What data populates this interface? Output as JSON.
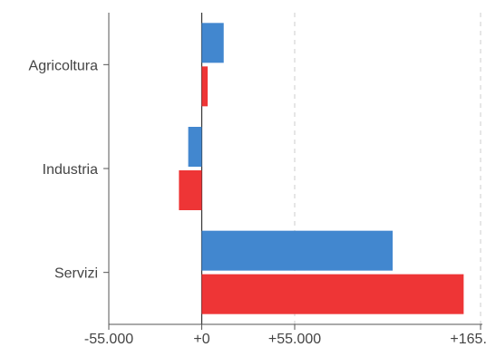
{
  "chart_data": {
    "type": "bar",
    "orientation": "horizontal",
    "categories": [
      "Agricoltura",
      "Industria",
      "Servizi"
    ],
    "series": [
      {
        "values": [
          13000,
          -8000,
          113000
        ],
        "color": "#4287cf"
      },
      {
        "values": [
          3500,
          -13500,
          155000
        ],
        "color": "#ee3536"
      }
    ],
    "x_ticks": [
      {
        "value": -55000,
        "label": "-55.000"
      },
      {
        "value": 0,
        "label": "+0"
      },
      {
        "value": 55000,
        "label": "+55.000"
      },
      {
        "value": 165000,
        "label": "+165.000"
      }
    ],
    "xlim": [
      -55000,
      165000
    ],
    "grid": true,
    "legend": "none",
    "title": "",
    "xlabel": "",
    "ylabel": ""
  }
}
